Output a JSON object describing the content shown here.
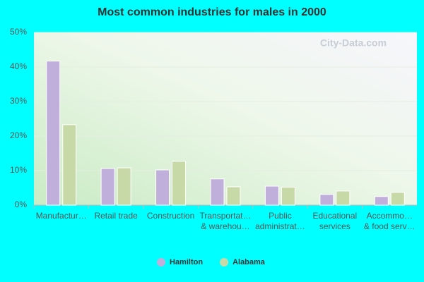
{
  "chart_data": {
    "type": "bar",
    "title": "Most common industries for males in 2000",
    "watermark": "City-Data.com",
    "categories": [
      "Manufactur…",
      "Retail trade",
      "Construction",
      "Transportat…\n& warehou…",
      "Public\nadministrat…",
      "Educational\nservices",
      "Accommo…\n& food serv…"
    ],
    "series": [
      {
        "name": "Hamilton",
        "color": "#c0aedb",
        "values": [
          41.7,
          10.6,
          10.2,
          7.6,
          5.5,
          3.1,
          2.5
        ]
      },
      {
        "name": "Alabama",
        "color": "#c8d9a8",
        "values": [
          23.3,
          10.8,
          12.7,
          5.3,
          5.2,
          4.1,
          3.7
        ]
      }
    ],
    "ylim": [
      0,
      50
    ],
    "yticks": [
      {
        "value": 0,
        "label": "0%"
      },
      {
        "value": 10,
        "label": "10%"
      },
      {
        "value": 20,
        "label": "20%"
      },
      {
        "value": 30,
        "label": "30%"
      },
      {
        "value": 40,
        "label": "40%"
      },
      {
        "value": 50,
        "label": "50%"
      }
    ],
    "grid": true,
    "legend": "bottom"
  }
}
